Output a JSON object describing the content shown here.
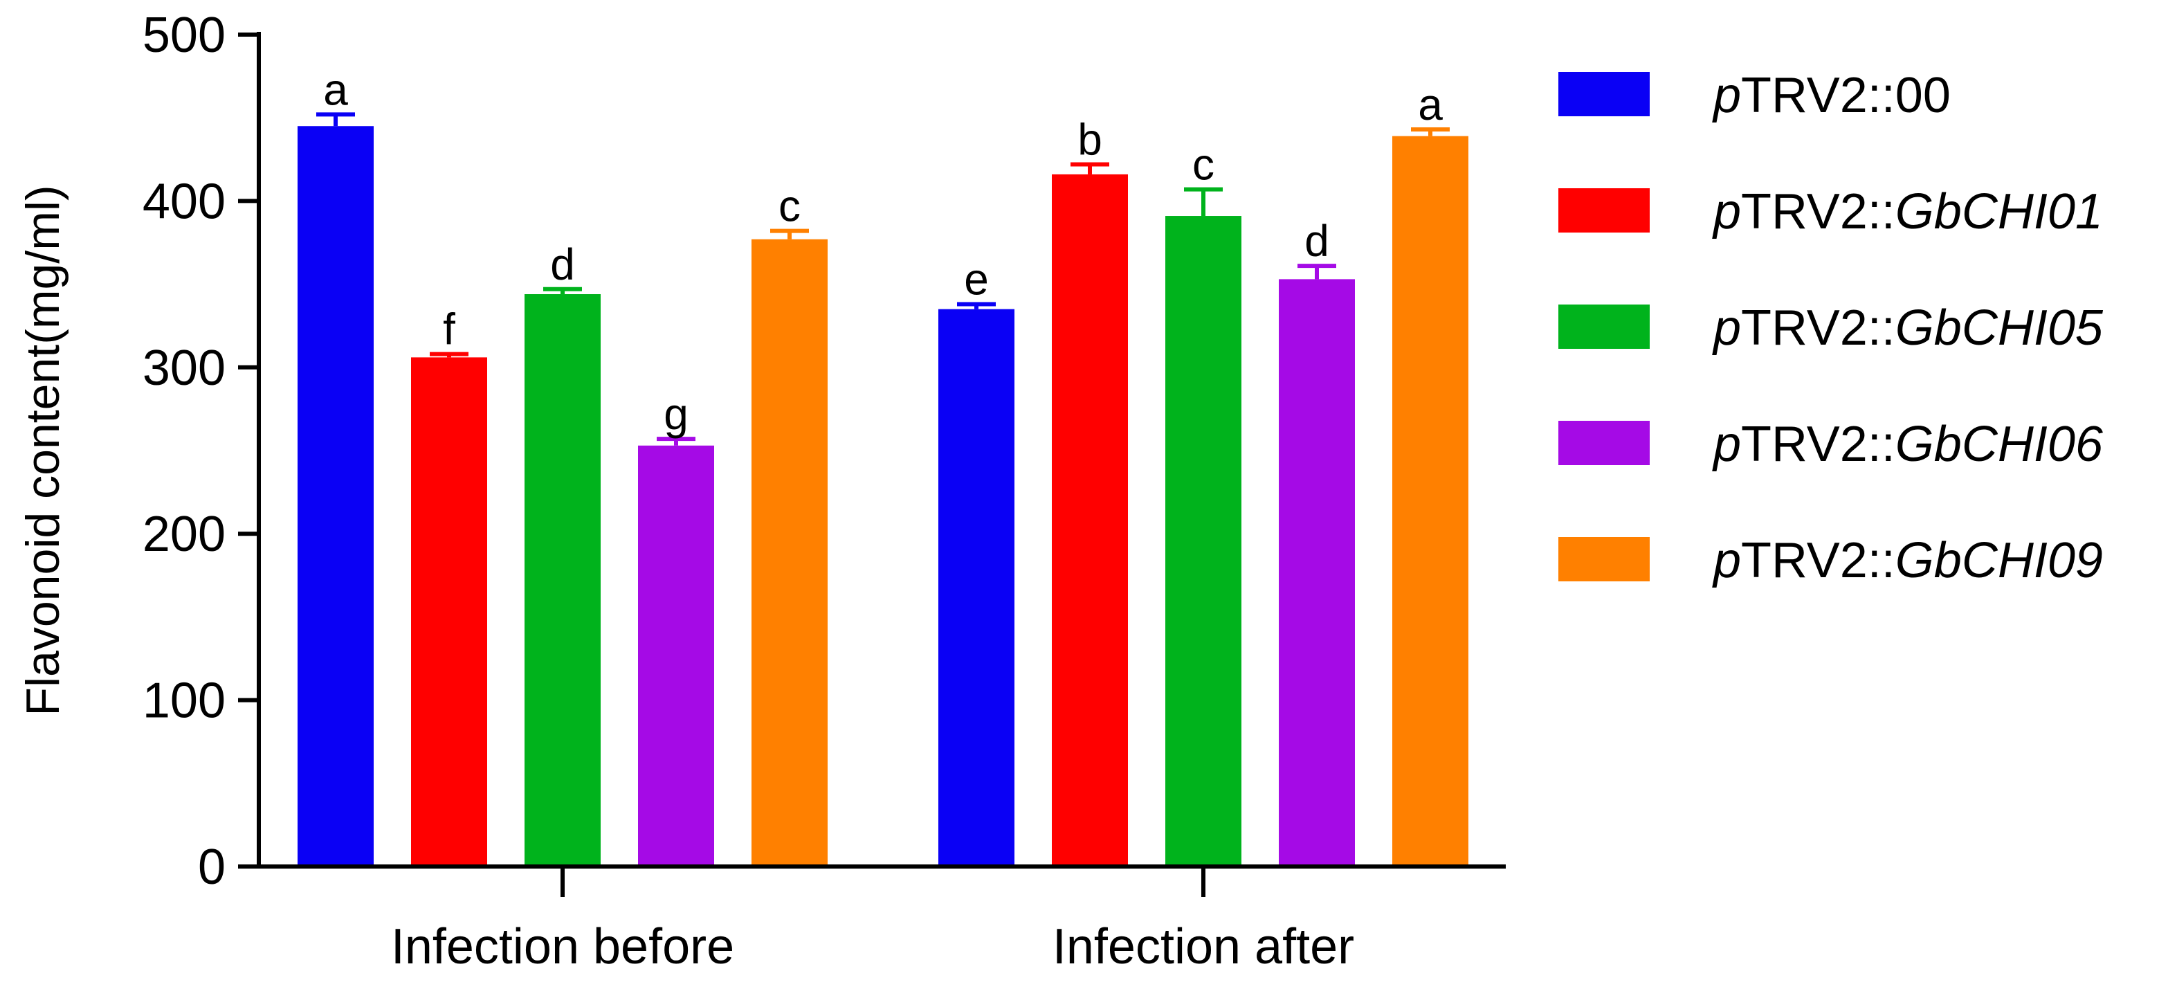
{
  "chart_data": {
    "type": "bar",
    "title": "",
    "xlabel": "",
    "ylabel": "Flavonoid content(mg/ml)",
    "ylim": [
      0,
      500
    ],
    "yticks": [
      0,
      100,
      200,
      300,
      400,
      500
    ],
    "categories": [
      "Infection before",
      "Infection after"
    ],
    "legend_position": "right",
    "grid": false,
    "series": [
      {
        "legend_prefix": "p",
        "legend_mid": "TRV2::",
        "legend_suffix": "00",
        "legend_suffix_italic": false,
        "color": "#0a00f5",
        "values": [
          445,
          335
        ],
        "errors": [
          7,
          3
        ],
        "letters": [
          "a",
          "e"
        ]
      },
      {
        "legend_prefix": "p",
        "legend_mid": "TRV2::",
        "legend_suffix": "GbCHI01",
        "legend_suffix_italic": true,
        "color": "#ff0000",
        "values": [
          306,
          416
        ],
        "errors": [
          2,
          6
        ],
        "letters": [
          "f",
          "b"
        ]
      },
      {
        "legend_prefix": "p",
        "legend_mid": "TRV2::",
        "legend_suffix": "GbCHI05",
        "legend_suffix_italic": true,
        "color": "#00b31c",
        "values": [
          344,
          391
        ],
        "errors": [
          3,
          16
        ],
        "letters": [
          "d",
          "c"
        ]
      },
      {
        "legend_prefix": "p",
        "legend_mid": "TRV2::",
        "legend_suffix": "GbCHI06",
        "legend_suffix_italic": true,
        "color": "#a50ae6",
        "values": [
          253,
          353
        ],
        "errors": [
          4,
          8
        ],
        "letters": [
          "g",
          "d"
        ]
      },
      {
        "legend_prefix": "p",
        "legend_mid": "TRV2::",
        "legend_suffix": "GbCHI09",
        "legend_suffix_italic": true,
        "color": "#ff8000",
        "values": [
          377,
          439
        ],
        "errors": [
          5,
          4
        ],
        "letters": [
          "c",
          "a"
        ]
      }
    ]
  }
}
